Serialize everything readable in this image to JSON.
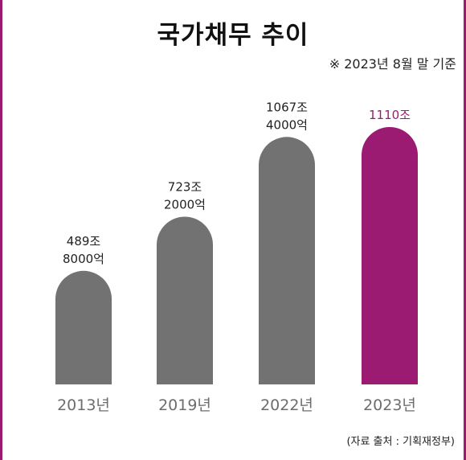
{
  "title": "국가채무 추이",
  "subtitle": "※ 2023년 8월 말 기준",
  "source": "(자료 출처 : 기획재정부)",
  "colors": {
    "bar": "#727272",
    "highlight": "#9b1b72",
    "axis_text": "#6d6d6d",
    "label_text": "#222222"
  },
  "chart_data": {
    "type": "bar",
    "categories": [
      "2013년",
      "2019년",
      "2022년",
      "2023년"
    ],
    "values": [
      489.8,
      723.2,
      1067.4,
      1110
    ],
    "value_labels": [
      [
        "489조",
        "8000억"
      ],
      [
        "723조",
        "2000억"
      ],
      [
        "1067조",
        "4000억"
      ],
      [
        "1110조"
      ]
    ],
    "highlight_index": 3,
    "unit": "조 원"
  }
}
